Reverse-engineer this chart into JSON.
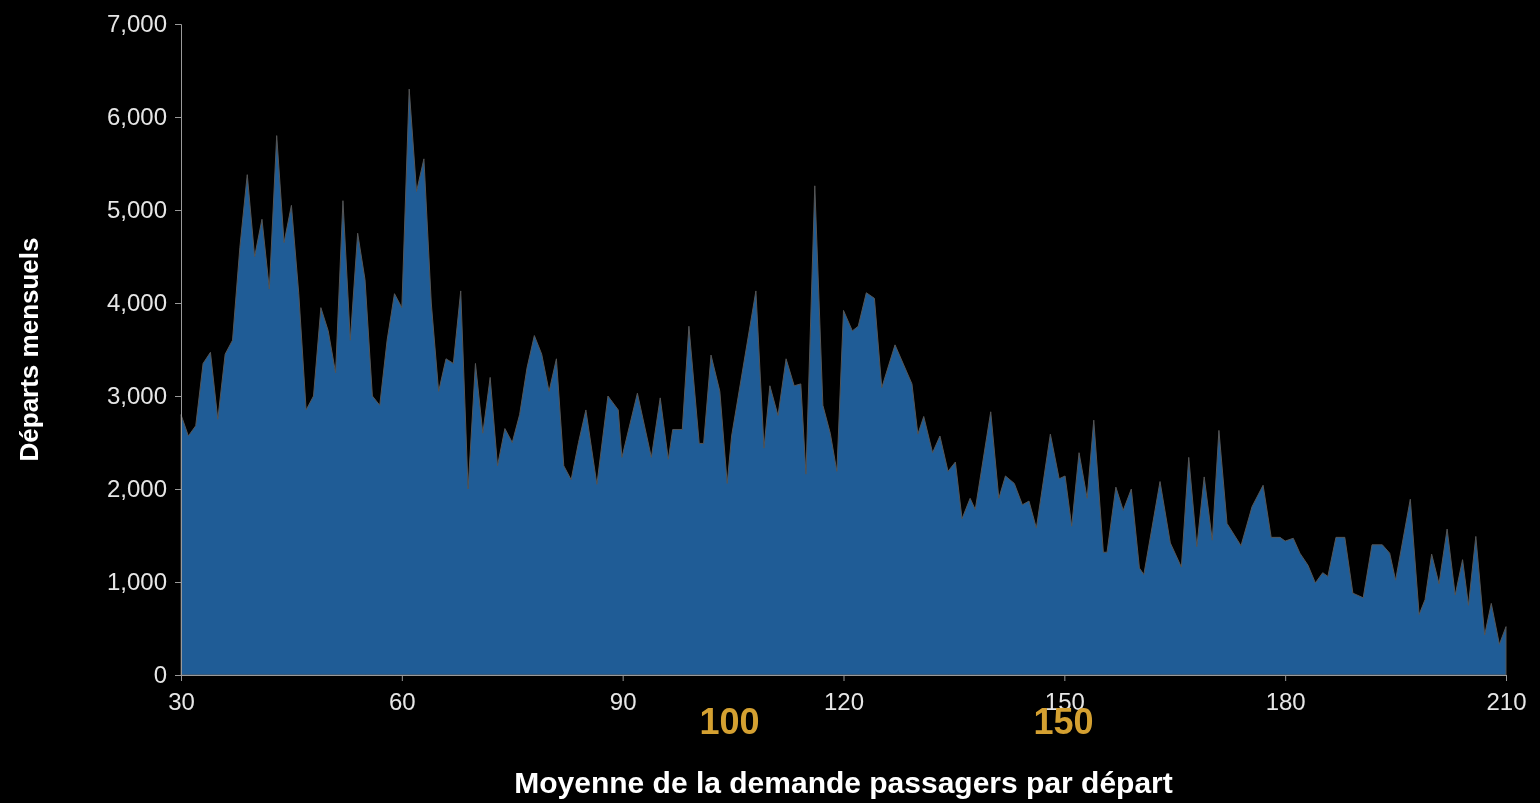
{
  "chart_data": {
    "type": "area",
    "xlabel": "Moyenne de la demande passagers par départ",
    "ylabel": "Départs mensuels",
    "xlim": [
      30,
      210
    ],
    "xticks": [
      30,
      60,
      90,
      120,
      150,
      180,
      210
    ],
    "ylim": [
      0,
      7000
    ],
    "yticks": [
      {
        "value": 0,
        "label": "0"
      },
      {
        "value": 1000,
        "label": "1,000"
      },
      {
        "value": 2000,
        "label": "2,000"
      },
      {
        "value": 3000,
        "label": "3,000"
      },
      {
        "value": 4000,
        "label": "4,000"
      },
      {
        "value": 5000,
        "label": "5,000"
      },
      {
        "value": 6000,
        "label": "6,000"
      },
      {
        "value": 7000,
        "label": "7,000"
      }
    ],
    "grid": false,
    "annotations": [
      "100",
      "150"
    ],
    "series": [
      {
        "color": "#1f5c96",
        "x": [
          30,
          31,
          32,
          33,
          34,
          35,
          36,
          37,
          38,
          39,
          40,
          41,
          42,
          43,
          44,
          45,
          46,
          47,
          48,
          49,
          50,
          51,
          52,
          53,
          54,
          55,
          56,
          57,
          58,
          59,
          60,
          61,
          62,
          63,
          64,
          65,
          66,
          67,
          68,
          69,
          70,
          71,
          72,
          73,
          74,
          75,
          76,
          77,
          78,
          79,
          80,
          81,
          82,
          83,
          84,
          85,
          86.5,
          88,
          89.4,
          89.9,
          92,
          93.9,
          95.1,
          96.2,
          96.8,
          98.1,
          99,
          100.4,
          101,
          102,
          103.2,
          104.2,
          104.8,
          108.1,
          109.2,
          110,
          111.1,
          112.2,
          113.3,
          114.2,
          114.9,
          116.1,
          117.2,
          118.2,
          119.1,
          120,
          121.2,
          122,
          123.1,
          124.2,
          125.2,
          127,
          129.3,
          130.1,
          130.9,
          132.1,
          133.1,
          134.2,
          135.2,
          136.1,
          137.2,
          137.9,
          140,
          141.1,
          142,
          143.2,
          144.3,
          145.2,
          146.2,
          148.1,
          149.3,
          150.1,
          151,
          152,
          153.1,
          154,
          155.3,
          155.8,
          157,
          158,
          159.1,
          160.2,
          160.8,
          163,
          164.4,
          165.9,
          166.9,
          168,
          169,
          170.1,
          171,
          172.1,
          174,
          175.5,
          177,
          178.1,
          179.3,
          180,
          181.1,
          182,
          183.1,
          184.1,
          185.1,
          185.8,
          186.9,
          188.1,
          189.2,
          190.6,
          191.8,
          193.2,
          194.2,
          195,
          197,
          198.2,
          199,
          199.9,
          200.9,
          202,
          203.1,
          204.1,
          204.9,
          205.9,
          207.1,
          208,
          209.1,
          210
        ],
        "values": [
          2800,
          2570,
          2680,
          3350,
          3470,
          2750,
          3450,
          3600,
          4600,
          5380,
          4500,
          4900,
          4150,
          5800,
          4650,
          5050,
          4100,
          2850,
          3000,
          3950,
          3700,
          3250,
          5100,
          3600,
          4750,
          4250,
          3000,
          2900,
          3600,
          4100,
          3950,
          6300,
          5200,
          5550,
          4000,
          3050,
          3400,
          3350,
          4130,
          2000,
          3350,
          2600,
          3200,
          2250,
          2650,
          2500,
          2800,
          3300,
          3650,
          3450,
          3050,
          3400,
          2250,
          2100,
          2500,
          2850,
          2050,
          3000,
          2850,
          2340,
          3030,
          2340,
          2980,
          2320,
          2640,
          2640,
          3750,
          2490,
          2490,
          3440,
          3050,
          2060,
          2570,
          4130,
          2440,
          3110,
          2790,
          3400,
          3110,
          3130,
          2160,
          5260,
          2900,
          2600,
          2190,
          3920,
          3700,
          3750,
          4110,
          4050,
          3090,
          3550,
          3130,
          2590,
          2780,
          2390,
          2570,
          2190,
          2290,
          1680,
          1900,
          1780,
          2830,
          1900,
          2140,
          2060,
          1830,
          1870,
          1580,
          2590,
          2110,
          2140,
          1600,
          2390,
          1900,
          2740,
          1320,
          1320,
          2020,
          1770,
          2000,
          1150,
          1080,
          2080,
          1420,
          1160,
          2340,
          1380,
          2130,
          1450,
          2630,
          1630,
          1390,
          1810,
          2040,
          1480,
          1480,
          1440,
          1470,
          1310,
          1180,
          990,
          1100,
          1060,
          1480,
          1480,
          880,
          830,
          1400,
          1400,
          1310,
          1020,
          1890,
          650,
          810,
          1300,
          980,
          1570,
          860,
          1240,
          750,
          1490,
          430,
          770,
          330,
          520
        ]
      }
    ]
  }
}
